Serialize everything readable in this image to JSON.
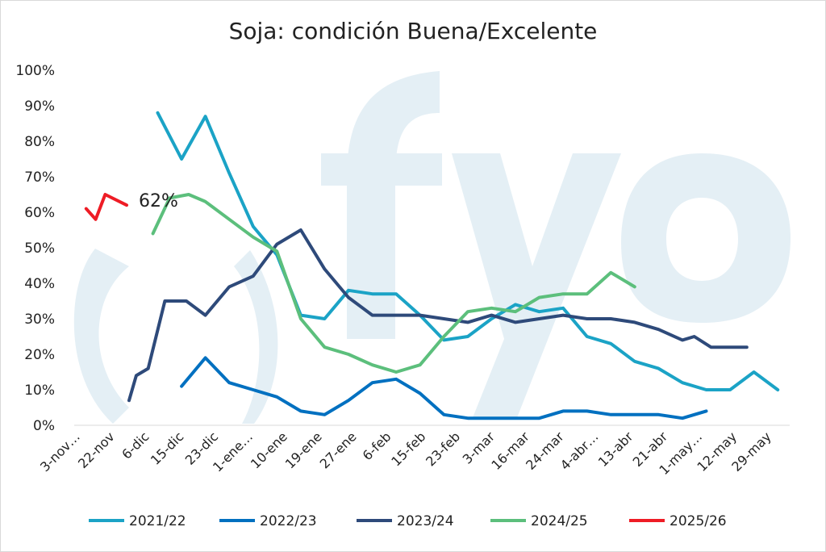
{
  "chart_data": {
    "type": "line",
    "title": "Soja: condición Buena/Excelente",
    "xlabel": "",
    "ylabel": "",
    "ylim": [
      0,
      100
    ],
    "y_ticks": [
      "0%",
      "10%",
      "20%",
      "30%",
      "40%",
      "50%",
      "60%",
      "70%",
      "80%",
      "90%",
      "100%"
    ],
    "categories": [
      "3-nov…",
      "22-nov",
      "6-dic",
      "15-dic",
      "23-dic",
      "1-ene…",
      "10-ene",
      "19-ene",
      "27-ene",
      "6-feb",
      "15-feb",
      "23-feb",
      "3-mar",
      "16-mar",
      "24-mar",
      "4-abr…",
      "13-abr",
      "21-abr",
      "1-may…",
      "12-may",
      "29-may"
    ],
    "legend_position": "bottom",
    "grid": false,
    "watermark": "fyo",
    "series": [
      {
        "name": "2021/22",
        "color": "#1BA3C6",
        "points": [
          [
            3,
            88
          ],
          [
            4,
            75
          ],
          [
            5,
            87
          ],
          [
            6,
            71
          ],
          [
            7,
            56
          ],
          [
            8,
            48
          ],
          [
            9,
            31
          ],
          [
            10,
            30
          ],
          [
            11,
            38
          ],
          [
            12,
            37
          ],
          [
            13,
            37
          ],
          [
            14,
            31
          ],
          [
            15,
            24
          ],
          [
            16,
            25
          ],
          [
            17,
            30
          ],
          [
            18,
            34
          ],
          [
            19,
            32
          ],
          [
            20,
            33
          ],
          [
            21,
            25
          ],
          [
            22,
            23
          ],
          [
            23,
            18
          ],
          [
            24,
            16
          ],
          [
            25,
            12
          ],
          [
            26,
            10
          ],
          [
            27,
            10
          ],
          [
            28,
            15
          ],
          [
            29,
            10
          ]
        ]
      },
      {
        "name": "2022/23",
        "color": "#0070C0",
        "points": [
          [
            4,
            11
          ],
          [
            5,
            19
          ],
          [
            6,
            12
          ],
          [
            7,
            10
          ],
          [
            8,
            8
          ],
          [
            9,
            4
          ],
          [
            10,
            3
          ],
          [
            11,
            7
          ],
          [
            12,
            12
          ],
          [
            13,
            13
          ],
          [
            14,
            9
          ],
          [
            15,
            3
          ],
          [
            16,
            2
          ],
          [
            17,
            2
          ],
          [
            18,
            2
          ],
          [
            19,
            2
          ],
          [
            20,
            4
          ],
          [
            21,
            4
          ],
          [
            22,
            3
          ],
          [
            23,
            3
          ],
          [
            24,
            3
          ],
          [
            25,
            2
          ],
          [
            26,
            4
          ]
        ]
      },
      {
        "name": "2023/24",
        "color": "#2E4A7A",
        "points": [
          [
            1.8,
            7
          ],
          [
            2.1,
            14
          ],
          [
            2.6,
            16
          ],
          [
            3.3,
            35
          ],
          [
            4.2,
            35
          ],
          [
            5,
            31
          ],
          [
            6,
            39
          ],
          [
            7,
            42
          ],
          [
            8,
            51
          ],
          [
            9,
            55
          ],
          [
            10,
            44
          ],
          [
            11,
            36
          ],
          [
            12,
            31
          ],
          [
            13,
            31
          ],
          [
            14,
            31
          ],
          [
            15,
            30
          ],
          [
            16,
            29
          ],
          [
            17,
            31
          ],
          [
            18,
            29
          ],
          [
            19,
            30
          ],
          [
            20,
            31
          ],
          [
            21,
            30
          ],
          [
            22,
            30
          ],
          [
            23,
            29
          ],
          [
            24,
            27
          ],
          [
            25,
            24
          ],
          [
            25.5,
            25
          ],
          [
            26.2,
            22
          ],
          [
            27,
            22
          ],
          [
            27.7,
            22
          ]
        ]
      },
      {
        "name": "2024/25",
        "color": "#5CBF7C",
        "points": [
          [
            2.8,
            54
          ],
          [
            3.5,
            64
          ],
          [
            4.3,
            65
          ],
          [
            5,
            63
          ],
          [
            6,
            58
          ],
          [
            7,
            53
          ],
          [
            8,
            49
          ],
          [
            9,
            30
          ],
          [
            10,
            22
          ],
          [
            11,
            20
          ],
          [
            12,
            17
          ],
          [
            13,
            15
          ],
          [
            14,
            17
          ],
          [
            15,
            25
          ],
          [
            16,
            32
          ],
          [
            17,
            33
          ],
          [
            18,
            32
          ],
          [
            19,
            36
          ],
          [
            20,
            37
          ],
          [
            21,
            37
          ],
          [
            22,
            43
          ],
          [
            23,
            39
          ]
        ]
      },
      {
        "name": "2025/26",
        "color": "#EE1C25",
        "points": [
          [
            0,
            61
          ],
          [
            0.4,
            58
          ],
          [
            0.8,
            65
          ],
          [
            1.7,
            62
          ]
        ]
      }
    ],
    "annotations": [
      {
        "text": "62%",
        "series": "2025/26"
      }
    ]
  }
}
